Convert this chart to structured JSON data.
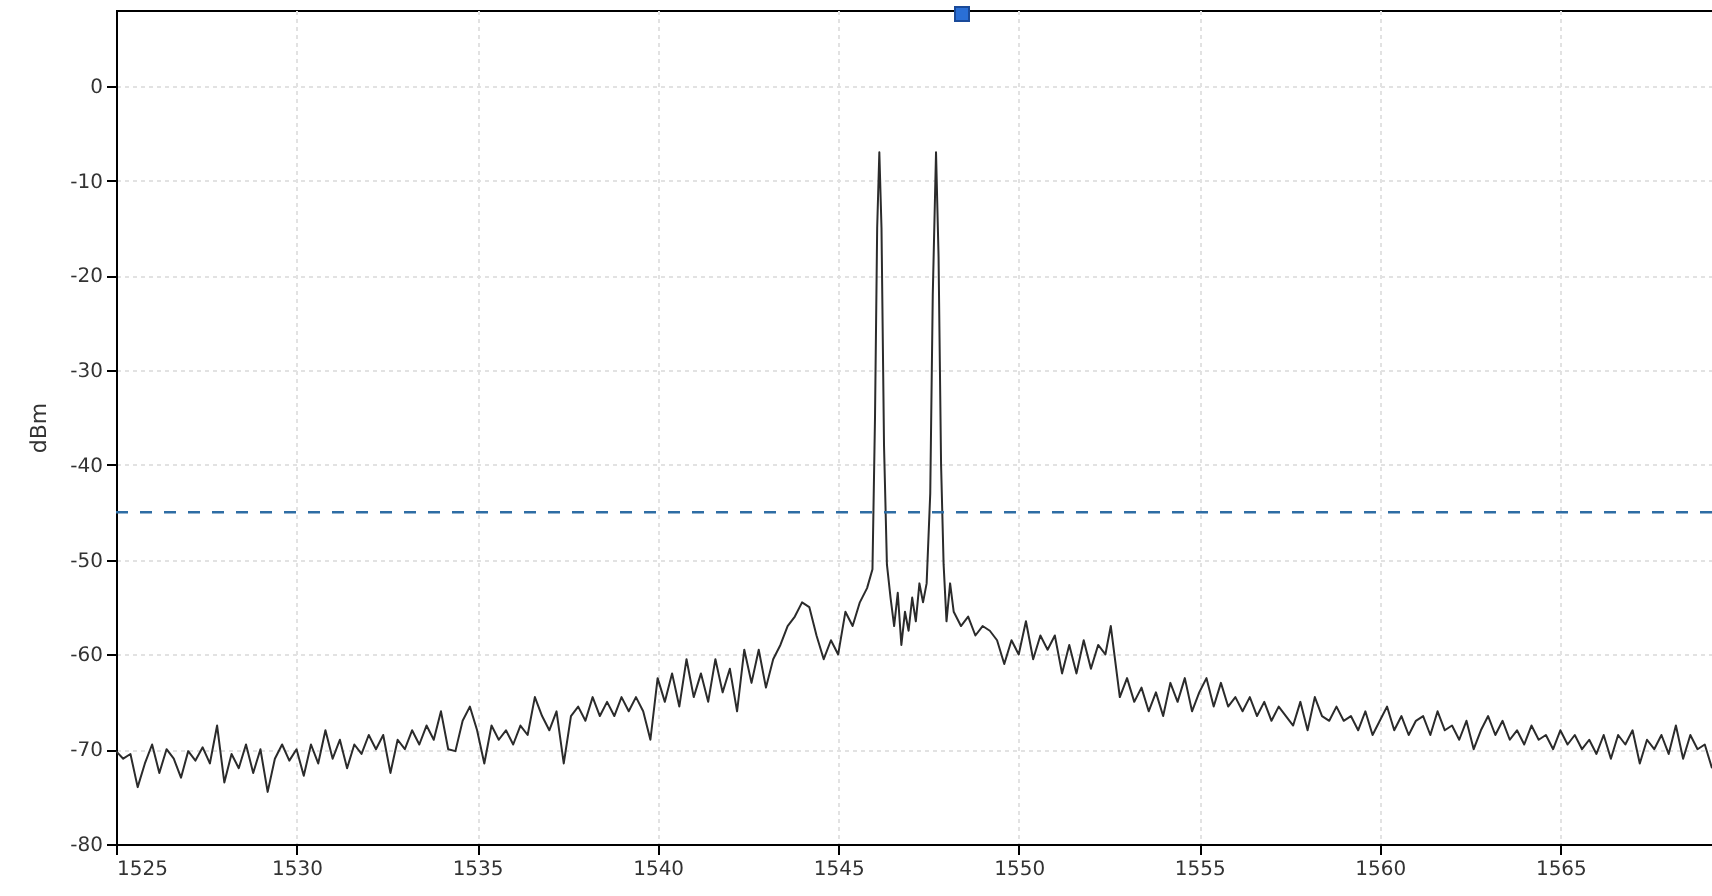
{
  "chart_data": {
    "type": "line",
    "ylabel": "dBm",
    "xlim": [
      1525,
      1569.2
    ],
    "ylim": [
      -80,
      8
    ],
    "xticks": [
      1525,
      1530,
      1535,
      1540,
      1545,
      1550,
      1555,
      1560,
      1565
    ],
    "yticks": [
      -80,
      -70,
      -60,
      -50,
      -40,
      -30,
      -20,
      -10,
      0
    ],
    "grid": true,
    "ref_lines": [
      {
        "axis": "y",
        "value": -45,
        "color": "#2e6da4",
        "line_style": "dashed"
      }
    ],
    "x": [
      1525,
      1525.2,
      1525.4,
      1525.6,
      1525.8,
      1526,
      1526.2,
      1526.4,
      1526.6,
      1526.8,
      1527,
      1527.2,
      1527.4,
      1527.6,
      1527.8,
      1528,
      1528.2,
      1528.4,
      1528.6,
      1528.8,
      1529,
      1529.2,
      1529.4,
      1529.6,
      1529.8,
      1530,
      1530.2,
      1530.4,
      1530.6,
      1530.8,
      1531,
      1531.2,
      1531.4,
      1531.6,
      1531.8,
      1532,
      1532.2,
      1532.4,
      1532.6,
      1532.8,
      1533,
      1533.2,
      1533.4,
      1533.6,
      1533.8,
      1534,
      1534.2,
      1534.4,
      1534.6,
      1534.8,
      1535,
      1535.2,
      1535.4,
      1535.6,
      1535.8,
      1536,
      1536.2,
      1536.4,
      1536.6,
      1536.8,
      1537,
      1537.2,
      1537.4,
      1537.6,
      1537.8,
      1538,
      1538.2,
      1538.4,
      1538.6,
      1538.8,
      1539,
      1539.2,
      1539.4,
      1539.6,
      1539.8,
      1540,
      1540.2,
      1540.4,
      1540.6,
      1540.8,
      1541,
      1541.2,
      1541.4,
      1541.6,
      1541.8,
      1542,
      1542.2,
      1542.4,
      1542.6,
      1542.8,
      1543,
      1543.2,
      1543.4,
      1543.6,
      1543.8,
      1544,
      1544.2,
      1544.4,
      1544.6,
      1544.8,
      1545,
      1545.2,
      1545.4,
      1545.6,
      1545.8,
      1545.95,
      1546.02,
      1546.08,
      1546.14,
      1546.2,
      1546.27,
      1546.35,
      1546.45,
      1546.55,
      1546.65,
      1546.75,
      1546.85,
      1546.95,
      1547.05,
      1547.15,
      1547.25,
      1547.35,
      1547.45,
      1547.55,
      1547.62,
      1547.71,
      1547.78,
      1547.85,
      1547.92,
      1548,
      1548.1,
      1548.2,
      1548.4,
      1548.6,
      1548.8,
      1549,
      1549.2,
      1549.4,
      1549.6,
      1549.8,
      1550,
      1550.2,
      1550.4,
      1550.6,
      1550.8,
      1551,
      1551.2,
      1551.4,
      1551.6,
      1551.8,
      1552,
      1552.2,
      1552.4,
      1552.55,
      1552.8,
      1553,
      1553.2,
      1553.4,
      1553.6,
      1553.8,
      1554,
      1554.2,
      1554.4,
      1554.6,
      1554.8,
      1555,
      1555.2,
      1555.4,
      1555.6,
      1555.8,
      1556,
      1556.2,
      1556.4,
      1556.6,
      1556.8,
      1557,
      1557.2,
      1557.4,
      1557.6,
      1557.8,
      1558,
      1558.2,
      1558.4,
      1558.6,
      1558.8,
      1559,
      1559.2,
      1559.4,
      1559.6,
      1559.8,
      1560,
      1560.2,
      1560.4,
      1560.6,
      1560.8,
      1561,
      1561.2,
      1561.4,
      1561.6,
      1561.8,
      1562,
      1562.2,
      1562.4,
      1562.6,
      1562.8,
      1563,
      1563.2,
      1563.4,
      1563.6,
      1563.8,
      1564,
      1564.2,
      1564.4,
      1564.6,
      1564.8,
      1565,
      1565.2,
      1565.4,
      1565.6,
      1565.8,
      1566,
      1566.2,
      1566.4,
      1566.6,
      1566.8,
      1567,
      1567.2,
      1567.4,
      1567.6,
      1567.8,
      1568,
      1568.2,
      1568.4,
      1568.6,
      1568.8,
      1569,
      1569.2
    ],
    "series": [
      {
        "color": "#2b2b2b",
        "values": [
          -70.2,
          -71,
          -70.5,
          -74,
          -71.5,
          -69.5,
          -72.5,
          -70,
          -71,
          -73,
          -70.2,
          -71.2,
          -69.8,
          -71.5,
          -67.5,
          -73.5,
          -70.5,
          -72,
          -69.5,
          -72.5,
          -70,
          -74.5,
          -71,
          -69.5,
          -71.2,
          -70,
          -72.8,
          -69.5,
          -71.5,
          -68,
          -71,
          -69,
          -72,
          -69.5,
          -70.5,
          -68.5,
          -70,
          -68.5,
          -72.5,
          -69,
          -70,
          -68,
          -69.5,
          -67.5,
          -69,
          -66,
          -70,
          -70.2,
          -67,
          -65.5,
          -68,
          -71.5,
          -67.5,
          -69,
          -68,
          -69.5,
          -67.5,
          -68.5,
          -64.5,
          -66.5,
          -68,
          -66,
          -71.5,
          -66.5,
          -65.5,
          -67,
          -64.5,
          -66.5,
          -65,
          -66.5,
          -64.5,
          -66,
          -64.5,
          -66,
          -69,
          -62.5,
          -65,
          -62,
          -65.5,
          -60.5,
          -64.5,
          -62,
          -65,
          -60.5,
          -64,
          -61.5,
          -66,
          -59.5,
          -63,
          -59.5,
          -63.5,
          -60.5,
          -59,
          -57,
          -56,
          -54.5,
          -55,
          -58,
          -60.5,
          -58.5,
          -60,
          -55.5,
          -57,
          -54.5,
          -53,
          -51,
          -35,
          -15,
          -7,
          -15,
          -38,
          -50.5,
          -54,
          -57,
          -53.5,
          -59,
          -55.5,
          -57.5,
          -54,
          -56.5,
          -52.5,
          -54.5,
          -52.5,
          -43,
          -22,
          -7,
          -18,
          -40,
          -50.5,
          -56.5,
          -52.5,
          -55.5,
          -57,
          -56,
          -58,
          -57,
          -57.5,
          -58.5,
          -61,
          -58.5,
          -60,
          -56.5,
          -60.5,
          -58,
          -59.5,
          -58,
          -62,
          -59,
          -62,
          -58.5,
          -61.5,
          -59,
          -60,
          -57,
          -64.5,
          -62.5,
          -65,
          -63.5,
          -66,
          -64,
          -66.5,
          -63,
          -65,
          -62.5,
          -66,
          -64,
          -62.5,
          -65.5,
          -63,
          -65.5,
          -64.5,
          -66,
          -64.5,
          -66.5,
          -65,
          -67,
          -65.5,
          -66.5,
          -67.5,
          -65,
          -68,
          -64.5,
          -66.5,
          -67,
          -65.5,
          -67,
          -66.5,
          -68,
          -66,
          -68.5,
          -67,
          -65.5,
          -68,
          -66.5,
          -68.5,
          -67,
          -66.5,
          -68.5,
          -66,
          -68,
          -67.5,
          -69,
          -67,
          -70,
          -68,
          -66.5,
          -68.5,
          -67,
          -69,
          -68,
          -69.5,
          -67.5,
          -69,
          -68.5,
          -70,
          -68,
          -69.5,
          -68.5,
          -70,
          -69,
          -70.5,
          -68.5,
          -71,
          -68.5,
          -69.5,
          -68,
          -71.5,
          -69,
          -70,
          -68.5,
          -70.5,
          -67.5,
          -71,
          -68.5,
          -70,
          -69.5,
          -72
        ]
      }
    ]
  }
}
